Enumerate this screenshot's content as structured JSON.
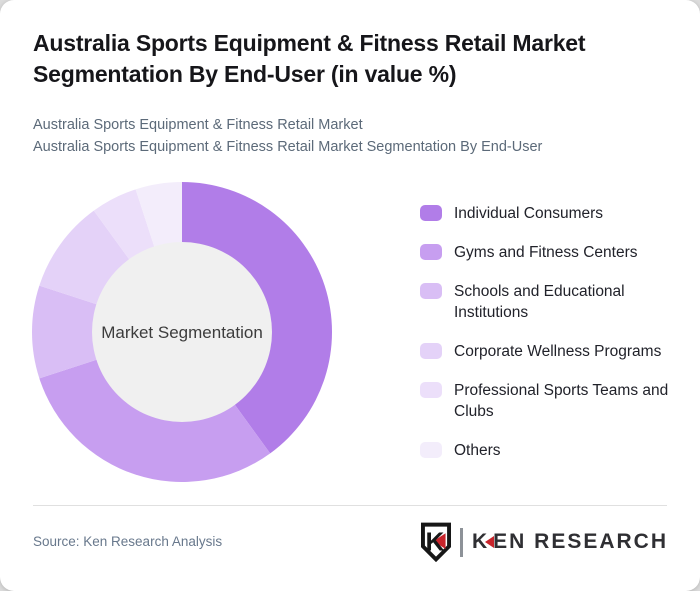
{
  "page": {
    "title": "Australia Sports Equipment & Fitness Retail Market Segmentation By End-User (in value %)",
    "subtitle_line1": "Australia Sports Equipment & Fitness Retail Market",
    "subtitle_line2": "Australia Sports Equipment & Fitness Retail Market Segmentation By End-User"
  },
  "chart_data": {
    "type": "pie",
    "variant": "donut",
    "title": "Australia Sports Equipment & Fitness Retail Market Segmentation By End-User (in value %)",
    "center_label": "Market Segmentation",
    "categories": [
      "Individual Consumers",
      "Gyms and Fitness Centers",
      "Schools and Educational Institutions",
      "Corporate Wellness Programs",
      "Professional Sports Teams and Clubs",
      "Others"
    ],
    "values": [
      40,
      30,
      10,
      10,
      5,
      5
    ],
    "unit": "value %",
    "colors": [
      "#b17de8",
      "#c79ef0",
      "#d9bef5",
      "#e4d2f8",
      "#ecdffa",
      "#f3edfb"
    ],
    "start_angle_deg": 0,
    "direction": "clockwise",
    "legend_position": "right",
    "inner_circle_color": "#f0f0f0",
    "center_label_color": "#3c3c3c"
  },
  "legend": {
    "items": [
      {
        "label": "Individual Consumers",
        "color": "#b17de8"
      },
      {
        "label": "Gyms and Fitness Centers",
        "color": "#c79ef0"
      },
      {
        "label": "Schools and Educational Institutions",
        "color": "#d9bef5"
      },
      {
        "label": "Corporate Wellness Programs",
        "color": "#e4d2f8"
      },
      {
        "label": "Professional Sports Teams and Clubs",
        "color": "#ecdffa"
      },
      {
        "label": "Others",
        "color": "#f3edfb"
      }
    ]
  },
  "footer": {
    "source": "Source: Ken Research Analysis",
    "logo_shield_letter": "K",
    "logo_word_first_letter": "K",
    "logo_word_rest": "EN RESEARCH",
    "logo_accent_color": "#c8242b",
    "logo_text_color": "#2f2f33"
  }
}
